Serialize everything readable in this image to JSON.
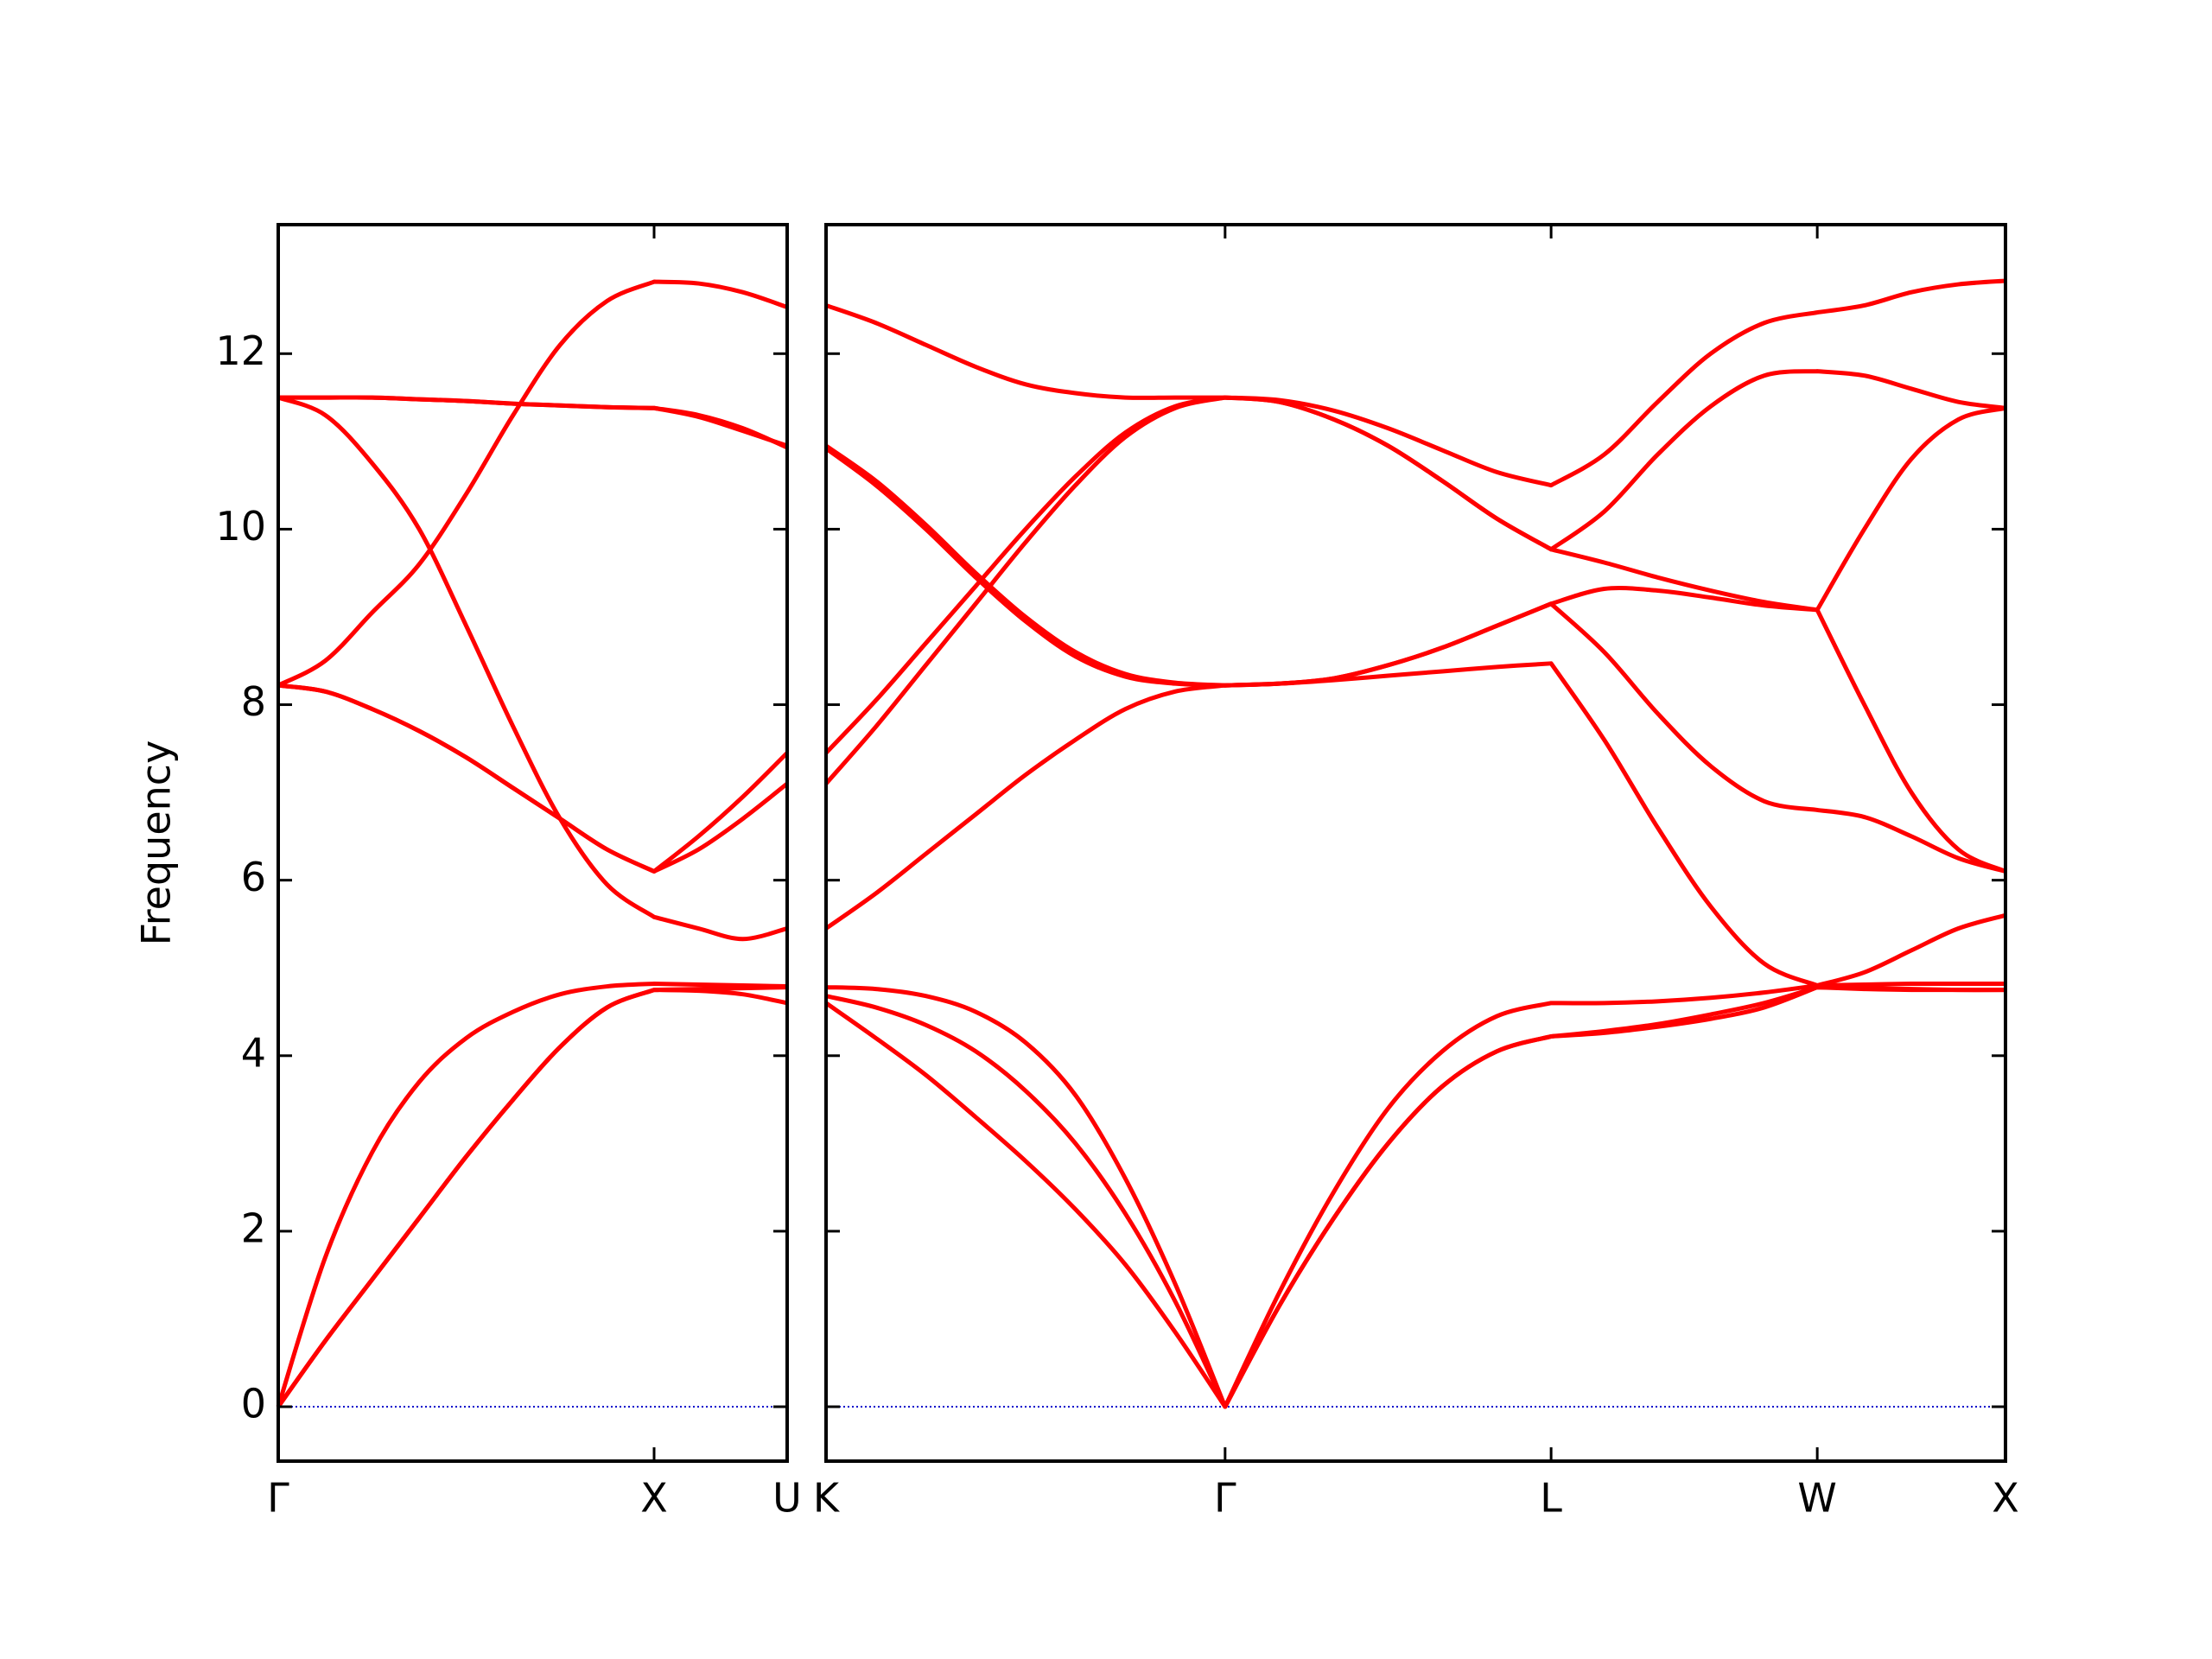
{
  "chart_data": [
    {
      "type": "line",
      "ylabel": "Frequency",
      "color": "#ff0000",
      "x": [
        0,
        0.125,
        0.25,
        0.375,
        0.5,
        0.625,
        0.75,
        0.875,
        1,
        1.118,
        1.236,
        1.354
      ],
      "xlim": [
        0,
        1.354
      ],
      "xticks": [
        {
          "value": 0,
          "label": "Γ"
        },
        {
          "value": 1,
          "label": "X"
        },
        {
          "value": 1.354,
          "label": "U"
        }
      ],
      "ylim": [
        -0.62,
        13.47
      ],
      "yticks": [
        0,
        2,
        4,
        6,
        8,
        10,
        12
      ],
      "ytick_labels": true,
      "zero_line": {
        "y": 0,
        "color": "#0000cc",
        "style": "dotted"
      },
      "series": [
        {
          "values": [
            0,
            0.75,
            1.45,
            2.15,
            2.85,
            3.5,
            4.1,
            4.55,
            4.75,
            4.74,
            4.7,
            4.6
          ]
        },
        {
          "values": [
            0,
            0.75,
            1.45,
            2.15,
            2.85,
            3.5,
            4.1,
            4.55,
            4.75,
            4.76,
            4.77,
            4.78
          ]
        },
        {
          "values": [
            0,
            1.7,
            2.9,
            3.7,
            4.2,
            4.5,
            4.7,
            4.79,
            4.82,
            4.81,
            4.8,
            4.79
          ]
        },
        {
          "values": [
            11.5,
            11.3,
            10.75,
            10.0,
            8.9,
            7.75,
            6.7,
            5.95,
            5.58,
            5.45,
            5.33,
            5.45
          ]
        },
        {
          "values": [
            8.22,
            8.15,
            7.95,
            7.7,
            7.4,
            7.05,
            6.7,
            6.35,
            6.1,
            6.35,
            6.7,
            7.1
          ]
        },
        {
          "values": [
            8.22,
            8.15,
            7.95,
            7.7,
            7.4,
            7.05,
            6.7,
            6.35,
            6.1,
            6.5,
            6.95,
            7.45
          ]
        },
        {
          "values": [
            8.22,
            8.5,
            9.05,
            9.6,
            10.4,
            11.3,
            12.1,
            12.6,
            12.82,
            12.8,
            12.7,
            12.53
          ]
        },
        {
          "values": [
            11.5,
            11.5,
            11.5,
            11.48,
            11.46,
            11.43,
            11.41,
            11.39,
            11.38,
            11.3,
            11.15,
            10.93
          ]
        },
        {
          "values": [
            11.5,
            11.5,
            11.5,
            11.48,
            11.46,
            11.43,
            11.41,
            11.39,
            11.38,
            11.28,
            11.12,
            10.95
          ]
        }
      ]
    },
    {
      "type": "line",
      "color": "#ff0000",
      "x": [
        1.354,
        1.4865,
        1.619,
        1.7515,
        1.884,
        2.0165,
        2.149,
        2.2815,
        2.414,
        2.558,
        2.703,
        2.847,
        2.991,
        3.136,
        3.28,
        3.421,
        3.563,
        3.704,
        3.846,
        3.987,
        4.112,
        4.237,
        4.362,
        4.487
      ],
      "xlim": [
        1.354,
        4.487
      ],
      "xticks": [
        {
          "value": 1.354,
          "label": "K"
        },
        {
          "value": 2.414,
          "label": "Γ"
        },
        {
          "value": 3.28,
          "label": "L"
        },
        {
          "value": 3.987,
          "label": "W"
        },
        {
          "value": 4.487,
          "label": "X"
        }
      ],
      "ylim": [
        -0.62,
        13.47
      ],
      "yticks": [
        0,
        2,
        4,
        6,
        8,
        10,
        12
      ],
      "ytick_labels": false,
      "zero_line": {
        "y": 0,
        "color": "#0000cc",
        "style": "dotted"
      },
      "series": [
        {
          "values": [
            4.6,
            4.2,
            3.78,
            3.3,
            2.8,
            2.25,
            1.62,
            0.85,
            0,
            1.15,
            2.15,
            3.0,
            3.65,
            4.05,
            4.22,
            4.28,
            4.36,
            4.47,
            4.6,
            4.78,
            4.76,
            4.75,
            4.75,
            4.75
          ]
        },
        {
          "values": [
            4.68,
            4.55,
            4.35,
            4.05,
            3.6,
            3.0,
            2.2,
            1.2,
            0,
            1.15,
            2.15,
            3.0,
            3.65,
            4.05,
            4.22,
            4.26,
            4.33,
            4.42,
            4.55,
            4.78,
            4.77,
            4.76,
            4.75,
            4.75
          ]
        },
        {
          "values": [
            4.78,
            4.76,
            4.68,
            4.5,
            4.15,
            3.55,
            2.6,
            1.4,
            0,
            1.3,
            2.45,
            3.4,
            4.05,
            4.45,
            4.6,
            4.6,
            4.62,
            4.66,
            4.72,
            4.8,
            4.81,
            4.82,
            4.82,
            4.82
          ]
        },
        {
          "values": [
            5.45,
            5.85,
            6.3,
            6.75,
            7.2,
            7.6,
            7.95,
            8.15,
            8.22,
            8.24,
            8.28,
            8.33,
            8.38,
            8.43,
            8.47,
            7.6,
            6.6,
            5.7,
            5.05,
            4.8,
            4.95,
            5.2,
            5.45,
            5.6
          ]
        },
        {
          "values": [
            7.1,
            7.75,
            8.45,
            9.15,
            9.85,
            10.5,
            11.05,
            11.38,
            11.5,
            11.45,
            11.25,
            10.95,
            10.55,
            10.12,
            9.77,
            9.62,
            9.45,
            9.3,
            9.17,
            9.08,
            10.0,
            10.8,
            11.25,
            11.38
          ]
        },
        {
          "values": [
            7.45,
            8.05,
            8.7,
            9.35,
            10.0,
            10.6,
            11.1,
            11.4,
            11.5,
            11.47,
            11.35,
            11.15,
            10.9,
            10.65,
            10.5,
            10.85,
            11.45,
            12.0,
            12.35,
            12.47,
            12.55,
            12.7,
            12.79,
            12.83
          ]
        },
        {
          "values": [
            10.92,
            10.5,
            10.0,
            9.45,
            8.95,
            8.55,
            8.32,
            8.24,
            8.22,
            8.24,
            8.3,
            8.45,
            8.65,
            8.9,
            9.15,
            9.32,
            9.3,
            9.22,
            9.13,
            9.08,
            8.0,
            7.0,
            6.35,
            6.1
          ]
        },
        {
          "values": [
            10.95,
            10.55,
            10.05,
            9.5,
            9.0,
            8.6,
            8.35,
            8.25,
            8.22,
            8.24,
            8.3,
            8.45,
            8.65,
            8.9,
            9.15,
            8.6,
            7.9,
            7.3,
            6.9,
            6.8,
            6.72,
            6.5,
            6.25,
            6.1
          ]
        },
        {
          "values": [
            12.55,
            12.35,
            12.1,
            11.85,
            11.65,
            11.55,
            11.5,
            11.5,
            11.5,
            11.45,
            11.25,
            10.95,
            10.55,
            10.12,
            9.77,
            10.2,
            10.85,
            11.4,
            11.75,
            11.8,
            11.75,
            11.6,
            11.45,
            11.38
          ]
        }
      ]
    }
  ]
}
